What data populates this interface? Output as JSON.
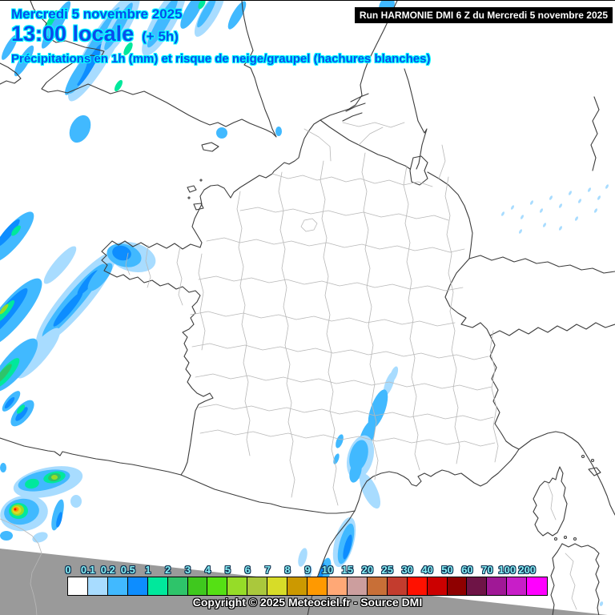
{
  "header": {
    "date": "Mercredi 5 novembre 2025",
    "time": "13:00 locale",
    "offset": "(+ 5h)",
    "subtitle": "Précipitations en 1h (mm) et risque de neige/graupel (hachures blanches)",
    "run": "Run HARMONIE DMI 6 Z du Mercredi 5 novembre 2025"
  },
  "footer": {
    "copyright": "Copyright © 2025 Meteociel.fr - Source DMI"
  },
  "legend": {
    "unit": "mm",
    "entries": [
      {
        "label": "0",
        "color": "#FFFFFF"
      },
      {
        "label": "0.1",
        "color": "#A8DCFF"
      },
      {
        "label": "0.2",
        "color": "#41B9FF"
      },
      {
        "label": "0.5",
        "color": "#0D8DFF"
      },
      {
        "label": "1",
        "color": "#00E89C"
      },
      {
        "label": "2",
        "color": "#2EC46A"
      },
      {
        "label": "3",
        "color": "#3FC81E"
      },
      {
        "label": "4",
        "color": "#55E014"
      },
      {
        "label": "5",
        "color": "#96DC28"
      },
      {
        "label": "6",
        "color": "#AAC83C"
      },
      {
        "label": "7",
        "color": "#D7DC28"
      },
      {
        "label": "8",
        "color": "#CC9900"
      },
      {
        "label": "9",
        "color": "#FF9900"
      },
      {
        "label": "10",
        "color": "#FFA876"
      },
      {
        "label": "15",
        "color": "#CC9E9E"
      },
      {
        "label": "20",
        "color": "#C86F37"
      },
      {
        "label": "25",
        "color": "#C33C2E"
      },
      {
        "label": "30",
        "color": "#FF1100"
      },
      {
        "label": "40",
        "color": "#CC0000"
      },
      {
        "label": "50",
        "color": "#8F0000"
      },
      {
        "label": "60",
        "color": "#6E1446"
      },
      {
        "label": "70",
        "color": "#A01896"
      },
      {
        "label": "100",
        "color": "#C81EC8"
      },
      {
        "label": "200",
        "color": "#FF00FF"
      }
    ]
  },
  "colors": {
    "title_text": "#0A4CEC",
    "title_outline": "#00FFFF",
    "legend_label_text": "#86EEF4",
    "legend_label_outline": "#0D3050",
    "domain_mask_gray": "#9A9A9A",
    "sea_and_land": "#FFFFFF",
    "coast_border": "#3C3C3C",
    "department_border": "#B8B8B8",
    "run_box_bg": "#000000",
    "run_box_text": "#FFFFFF"
  }
}
